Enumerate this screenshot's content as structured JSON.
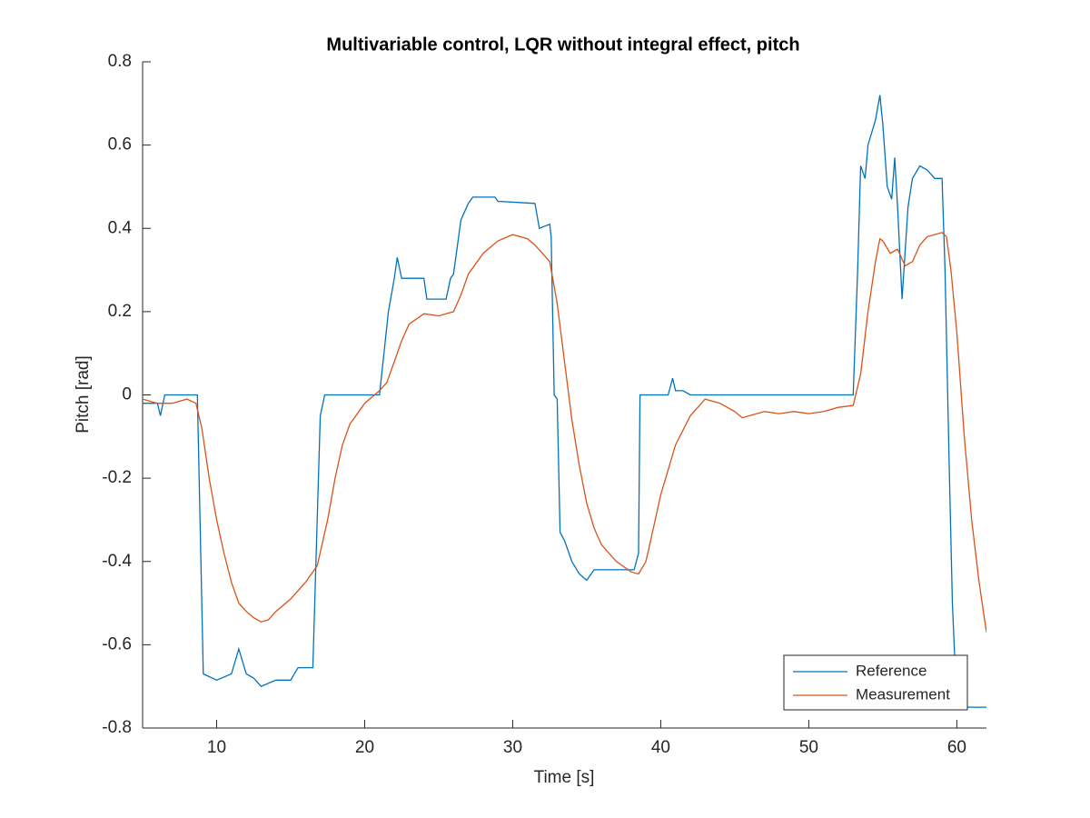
{
  "chart_data": {
    "type": "line",
    "title": "Multivariable control, LQR without integral effect, pitch",
    "x_label": "Time [s]",
    "y_label": "Pitch [rad]",
    "xlim": [
      5,
      62
    ],
    "ylim": [
      -0.8,
      0.8
    ],
    "xticks": [
      10,
      20,
      30,
      40,
      50,
      60
    ],
    "yticks": [
      -0.8,
      -0.6,
      -0.4,
      -0.2,
      0,
      0.2,
      0.4,
      0.6,
      0.8
    ],
    "legend": "lower right",
    "series": [
      {
        "name": "Reference",
        "color": "#0072bd",
        "x": [
          5,
          6,
          6.2,
          6.5,
          8.7,
          9.1,
          10,
          11,
          11.5,
          12,
          12.5,
          13,
          14,
          15,
          15.5,
          16.5,
          17,
          17.3,
          21,
          21.3,
          21.6,
          22,
          22.2,
          22.5,
          24,
          24.2,
          25.5,
          25.8,
          26,
          26.5,
          27,
          27.3,
          28.8,
          29,
          31.5,
          31.8,
          32.5,
          32.6,
          32.8,
          33,
          33.2,
          33.5,
          34,
          34.5,
          35,
          35.5,
          38.2,
          38.5,
          38.6,
          40.5,
          40.8,
          41,
          41.5,
          42,
          53,
          53.3,
          53.5,
          53.8,
          54,
          54.5,
          54.8,
          55,
          55.3,
          55.6,
          55.8,
          56,
          56.3,
          56.7,
          57,
          57.5,
          58,
          58.5,
          59,
          59.2,
          59.5,
          59.7,
          60,
          62
        ],
        "values": [
          -0.02,
          -0.02,
          -0.05,
          0,
          0,
          -0.67,
          -0.685,
          -0.67,
          -0.61,
          -0.67,
          -0.68,
          -0.7,
          -0.685,
          -0.685,
          -0.655,
          -0.655,
          -0.05,
          0,
          0,
          0.1,
          0.2,
          0.28,
          0.33,
          0.28,
          0.28,
          0.23,
          0.23,
          0.28,
          0.29,
          0.42,
          0.46,
          0.475,
          0.475,
          0.465,
          0.46,
          0.4,
          0.41,
          0.38,
          0,
          -0.01,
          -0.33,
          -0.35,
          -0.4,
          -0.43,
          -0.445,
          -0.42,
          -0.42,
          -0.38,
          0,
          0,
          0.04,
          0.01,
          0.01,
          0,
          0,
          0.3,
          0.55,
          0.52,
          0.6,
          0.66,
          0.72,
          0.65,
          0.5,
          0.47,
          0.57,
          0.45,
          0.23,
          0.45,
          0.52,
          0.55,
          0.54,
          0.52,
          0.52,
          0.3,
          -0.2,
          -0.5,
          -0.75,
          -0.75
        ]
      },
      {
        "name": "Measurement",
        "color": "#d95319",
        "x": [
          5,
          6,
          7,
          8,
          8.6,
          9,
          9.5,
          10,
          10.5,
          11,
          11.5,
          12,
          12.5,
          13,
          13.5,
          14,
          15,
          16,
          16.8,
          17.5,
          18,
          18.5,
          19,
          20,
          21,
          21.5,
          22,
          22.5,
          23,
          24,
          25,
          26,
          26.5,
          27,
          28,
          29,
          30,
          31,
          31.5,
          32,
          32.5,
          33,
          33.5,
          34,
          34.5,
          35,
          35.5,
          36,
          37,
          38,
          38.5,
          39,
          39.5,
          40,
          41,
          42,
          43,
          44,
          45,
          45.5,
          46,
          47,
          48,
          49,
          50,
          51,
          52,
          53,
          53.5,
          54,
          54.5,
          54.8,
          55,
          55.5,
          56,
          56.5,
          57,
          57.5,
          58,
          58.5,
          59,
          59.3,
          59.6,
          60,
          60.5,
          61,
          61.5,
          62
        ],
        "values": [
          -0.01,
          -0.02,
          -0.02,
          -0.01,
          -0.02,
          -0.08,
          -0.2,
          -0.3,
          -0.38,
          -0.45,
          -0.5,
          -0.52,
          -0.535,
          -0.545,
          -0.54,
          -0.52,
          -0.49,
          -0.45,
          -0.41,
          -0.3,
          -0.2,
          -0.12,
          -0.07,
          -0.02,
          0.01,
          0.03,
          0.08,
          0.13,
          0.17,
          0.195,
          0.19,
          0.2,
          0.24,
          0.29,
          0.34,
          0.37,
          0.385,
          0.375,
          0.36,
          0.34,
          0.32,
          0.22,
          0.08,
          -0.06,
          -0.17,
          -0.26,
          -0.32,
          -0.36,
          -0.4,
          -0.425,
          -0.43,
          -0.4,
          -0.32,
          -0.24,
          -0.12,
          -0.05,
          -0.01,
          -0.02,
          -0.04,
          -0.055,
          -0.05,
          -0.04,
          -0.045,
          -0.04,
          -0.045,
          -0.04,
          -0.03,
          -0.025,
          0.05,
          0.2,
          0.32,
          0.375,
          0.37,
          0.34,
          0.35,
          0.31,
          0.32,
          0.36,
          0.38,
          0.385,
          0.39,
          0.38,
          0.3,
          0.15,
          -0.1,
          -0.3,
          -0.45,
          -0.57
        ]
      }
    ]
  }
}
